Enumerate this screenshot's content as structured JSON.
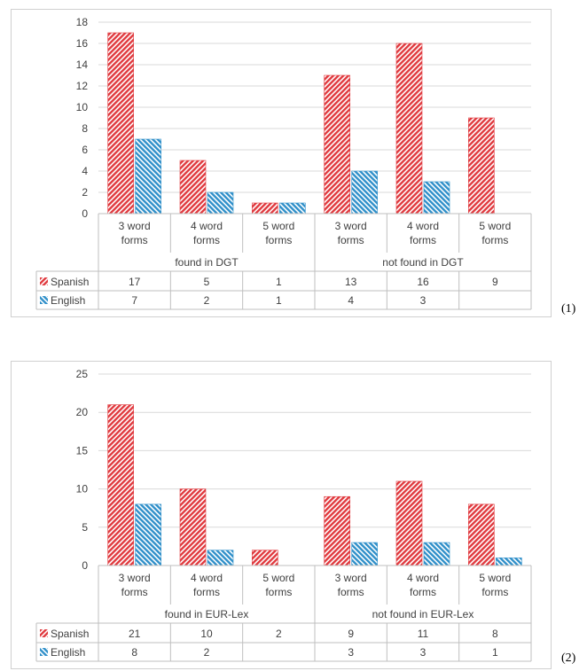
{
  "figure_labels": [
    "(1)",
    "(2)"
  ],
  "colors": {
    "spanish": "#e0393e",
    "english": "#2f8fc9",
    "grid": "#d9d9d9",
    "text": "#404040"
  },
  "chart_data": [
    {
      "type": "bar",
      "title": "",
      "xlabel": "",
      "ylabel": "",
      "ylim": [
        0,
        18
      ],
      "yticks": [
        0,
        2,
        4,
        6,
        8,
        10,
        12,
        14,
        16,
        18
      ],
      "grid": true,
      "legend": "data-table",
      "categories": [
        [
          "3 word",
          "forms"
        ],
        [
          "4 word",
          "forms"
        ],
        [
          "5 word",
          "forms"
        ],
        [
          "3 word",
          "forms"
        ],
        [
          "4 word",
          "forms"
        ],
        [
          "5 word",
          "forms"
        ]
      ],
      "groups": [
        "found in DGT",
        "not found in DGT"
      ],
      "series": [
        {
          "name": "Spanish",
          "values": [
            17,
            5,
            1,
            13,
            16,
            9
          ]
        },
        {
          "name": "English",
          "values": [
            7,
            2,
            1,
            4,
            3,
            null
          ]
        }
      ]
    },
    {
      "type": "bar",
      "title": "",
      "xlabel": "",
      "ylabel": "",
      "ylim": [
        0,
        25
      ],
      "yticks": [
        0,
        5,
        10,
        15,
        20,
        25
      ],
      "grid": true,
      "legend": "data-table",
      "categories": [
        [
          "3 word",
          "forms"
        ],
        [
          "4 word",
          "forms"
        ],
        [
          "5 word",
          "forms"
        ],
        [
          "3 word",
          "forms"
        ],
        [
          "4 word",
          "forms"
        ],
        [
          "5 word",
          "forms"
        ]
      ],
      "groups": [
        "found in EUR-Lex",
        "not found in EUR-Lex"
      ],
      "series": [
        {
          "name": "Spanish",
          "values": [
            21,
            10,
            2,
            9,
            11,
            8
          ]
        },
        {
          "name": "English",
          "values": [
            8,
            2,
            null,
            3,
            3,
            1
          ]
        }
      ]
    }
  ]
}
